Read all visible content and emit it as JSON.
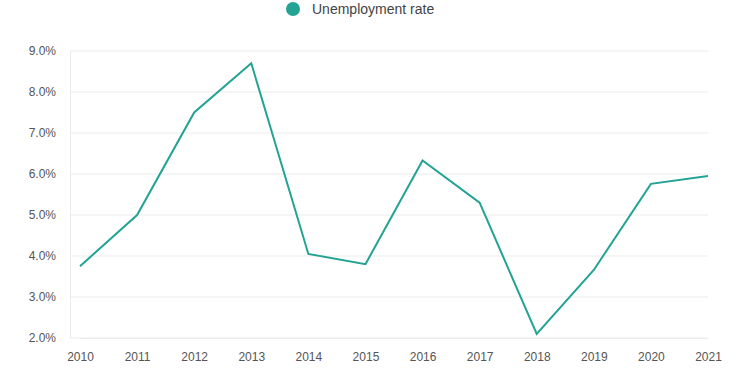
{
  "chart_data": {
    "type": "line",
    "categories": [
      "2010",
      "2011",
      "2012",
      "2013",
      "2014",
      "2015",
      "2016",
      "2017",
      "2018",
      "2019",
      "2020",
      "2021"
    ],
    "series": [
      {
        "name": "Unemployment rate",
        "color": "#22a393",
        "values": [
          3.75,
          5.0,
          7.5,
          8.7,
          4.05,
          3.8,
          6.33,
          5.3,
          2.1,
          3.66,
          5.76,
          5.95
        ]
      }
    ],
    "ylim": [
      2,
      9
    ],
    "yticks": [
      {
        "value": 2,
        "label": "2.0%"
      },
      {
        "value": 3,
        "label": "3.0%"
      },
      {
        "value": 4,
        "label": "4.0%"
      },
      {
        "value": 5,
        "label": "5.0%"
      },
      {
        "value": 6,
        "label": "6.0%"
      },
      {
        "value": 7,
        "label": "7.0%"
      },
      {
        "value": 8,
        "label": "8.0%"
      },
      {
        "value": 9,
        "label": "9.0%"
      }
    ],
    "grid": true,
    "legend": "top"
  }
}
